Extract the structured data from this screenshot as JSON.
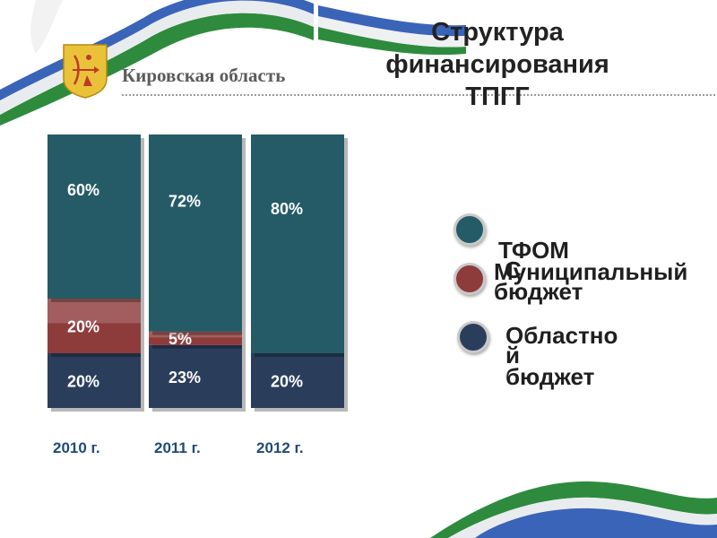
{
  "header": {
    "region_name": "Кировская область",
    "title_line1": "Структура",
    "title_line2": "финансирования ТПГГ"
  },
  "colors": {
    "oblast": "#2a3e5c",
    "municipal": "#8e3b3b",
    "tfoms": "#245b66",
    "category_text": "#1f4a7a",
    "ribbon_green": "#2e8b3d",
    "ribbon_blue": "#3a64b8"
  },
  "chart_data": {
    "type": "bar",
    "stacked": true,
    "categories": [
      "2010 г.",
      "2011 г.",
      "2012 г."
    ],
    "series": [
      {
        "name": "Областной бюджет",
        "values": [
          20,
          23,
          20
        ],
        "labels": [
          "20%",
          "23%",
          "20%"
        ]
      },
      {
        "name": "Муниципальный бюджет",
        "values": [
          20,
          5,
          0
        ],
        "labels": [
          "20%",
          "5%",
          ""
        ]
      },
      {
        "name": "ТФОМС",
        "values": [
          60,
          72,
          80
        ],
        "labels": [
          "60%",
          "72%",
          "80%"
        ]
      }
    ],
    "ylim": [
      0,
      100
    ],
    "grid": false,
    "legend_position": "right"
  },
  "legend": {
    "items": [
      {
        "label_a": "ТФОМ",
        "label_b": "С",
        "icon": "teal-circle-icon"
      },
      {
        "label_a": "Муниципальный",
        "label_b": "бюджет",
        "icon": "red-circle-icon"
      },
      {
        "label_a": "Областно",
        "label_b": "й",
        "label_c": "бюджет",
        "icon": "navy-circle-icon"
      }
    ]
  }
}
